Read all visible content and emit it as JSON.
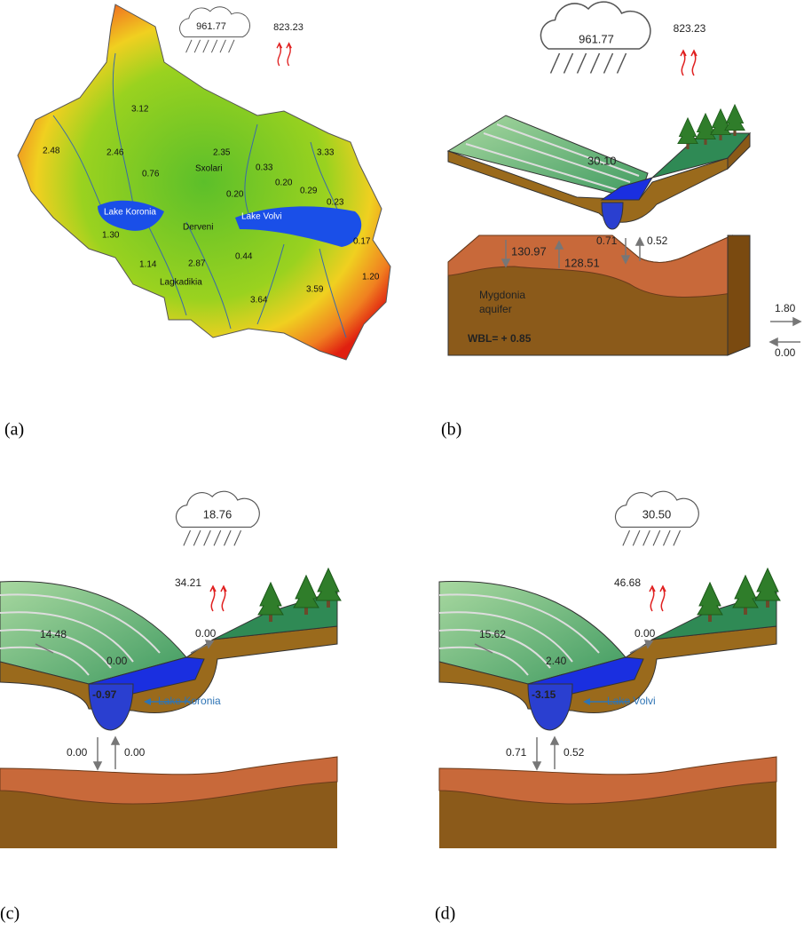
{
  "panels": {
    "a": {
      "caption": "(a)",
      "rainfall": "961.77",
      "evapotranspiration": "823.23",
      "labels": [
        "3.12",
        "2.48",
        "2.46",
        "0.76",
        "2.35",
        "Sxolari",
        "0.33",
        "3.33",
        "0.20",
        "0.29",
        "0.20",
        "0.23",
        "Lake Koronia",
        "Derveni",
        "Lake Volvi",
        "0.17",
        "1.30",
        "1.14",
        "2.87",
        "0.44",
        "Lagkadikia",
        "1.20",
        "3.59",
        "3.64"
      ]
    },
    "b": {
      "caption": "(b)",
      "rainfall": "961.77",
      "evapotranspiration": "823.23",
      "runoff": "30.10",
      "river_down": "0.71",
      "river_up": "0.52",
      "recharge": "130.97",
      "discharge": "128.51",
      "aquifer_label": [
        "Mygdonia",
        "aquifer"
      ],
      "balance": "WBL= + 0.85",
      "lateral_out": "1.80",
      "lateral_in": "0.00"
    },
    "c": {
      "caption": "(c)",
      "rainfall": "18.76",
      "evapotranspiration": "34.21",
      "runoff": "14.48",
      "outflow": "0.00",
      "inflow": "0.00",
      "balance": "-0.97",
      "lake": "Lake Koronia",
      "down": "0.00",
      "up": "0.00"
    },
    "d": {
      "caption": "(d)",
      "rainfall": "30.50",
      "evapotranspiration": "46.68",
      "runoff": "15.62",
      "outflow": "0.00",
      "inflow": "2.40",
      "balance": "-3.15",
      "lake": "Lake Volvi",
      "down": "0.71",
      "up": "0.52"
    }
  }
}
